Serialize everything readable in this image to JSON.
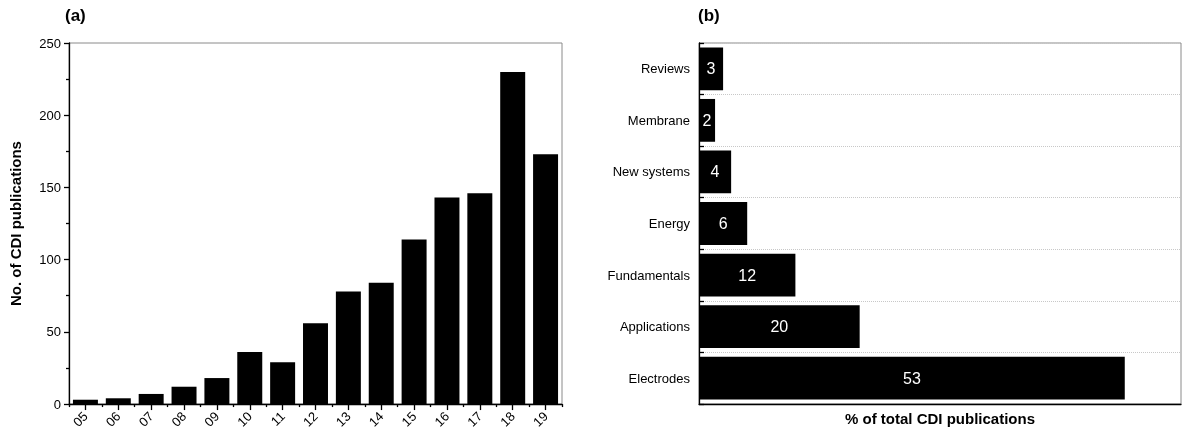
{
  "chart_data": [
    {
      "type": "bar",
      "title": "(a)",
      "ylabel": "No. of CDI publications",
      "categories": [
        "05",
        "06",
        "07",
        "08",
        "09",
        "10",
        "11",
        "12",
        "13",
        "14",
        "15",
        "16",
        "17",
        "18",
        "19"
      ],
      "values": [
        3,
        4,
        7,
        12,
        18,
        36,
        29,
        56,
        78,
        84,
        114,
        143,
        146,
        230,
        173
      ],
      "color": "#000000",
      "ylim": [
        0,
        250
      ],
      "yticks": [
        0,
        {
          "value": 25,
          "label": null
        },
        50,
        {
          "value": 75,
          "label": null
        },
        100,
        {
          "value": 125,
          "label": null
        },
        150,
        {
          "value": 175,
          "label": null
        },
        200,
        {
          "value": 225,
          "label": null
        },
        250
      ]
    },
    {
      "type": "bar",
      "title": "(b)",
      "xlabel": "% of total CDI publications",
      "orientation": "horizontal",
      "categories": [
        "Reviews",
        "Membrane",
        "New systems",
        "Energy",
        "Fundamentals",
        "Applications",
        "Electrodes"
      ],
      "values": [
        3,
        2,
        4,
        6,
        12,
        20,
        53
      ],
      "color": "#000000",
      "data_labels": true,
      "grid": "y",
      "tick_labels": "y"
    }
  ]
}
